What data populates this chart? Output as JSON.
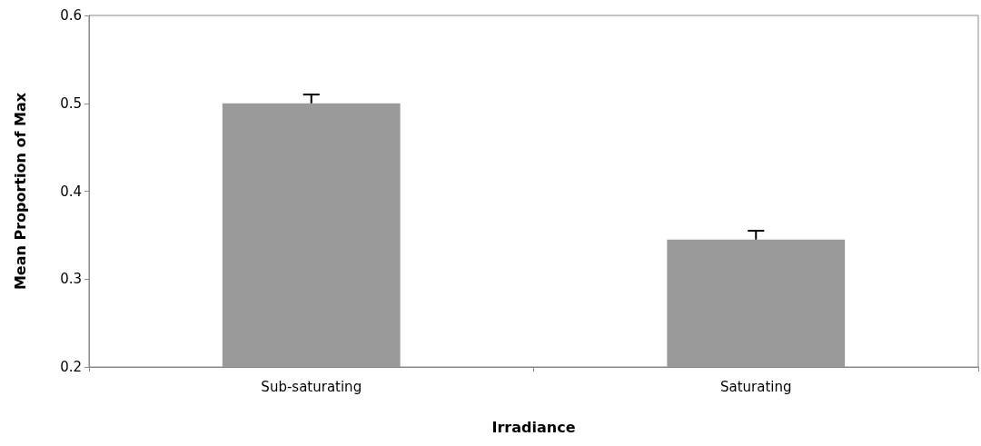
{
  "chart_data": {
    "type": "bar",
    "xlabel": "Irradiance",
    "ylabel": "Mean Proportion of Max",
    "categories": [
      "Sub-saturating",
      "Saturating"
    ],
    "values": [
      0.5,
      0.345
    ],
    "errors": [
      [
        0.5,
        0.51
      ],
      [
        0.345,
        0.355
      ]
    ],
    "color": "#9a9a9a",
    "ylim": [
      0.2,
      0.6
    ],
    "yticks": [
      0.2,
      0.3,
      0.4,
      0.5,
      0.6
    ],
    "grid": false
  }
}
